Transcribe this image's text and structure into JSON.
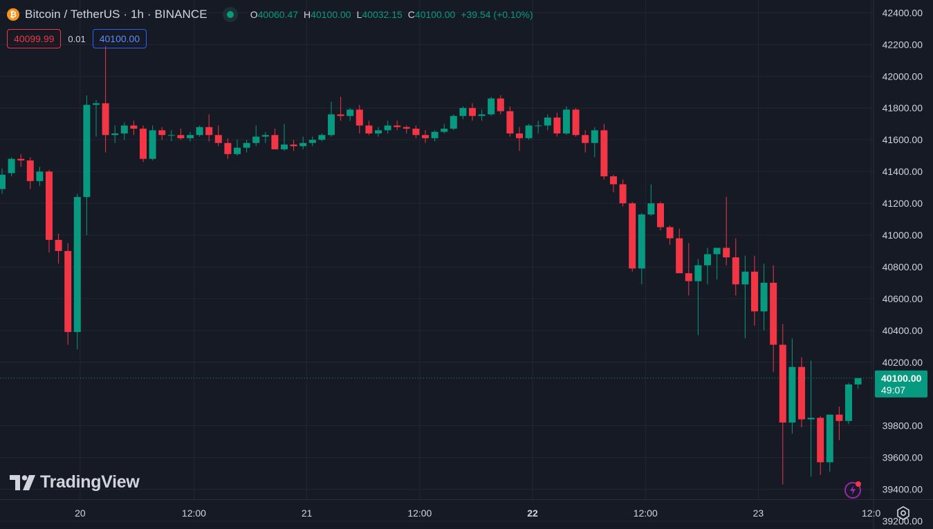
{
  "header": {
    "symbol_title": "Bitcoin / TetherUS · 1h · BINANCE",
    "ohlc": {
      "o_label": "O",
      "o": "40060.47",
      "h_label": "H",
      "h": "40100.00",
      "l_label": "L",
      "l": "40032.15",
      "c_label": "C",
      "c": "40100.00",
      "change": "+39.54 (+0.10%)"
    }
  },
  "trade": {
    "sell_price": "40099.99",
    "spread": "0.01",
    "buy_price": "40100.00"
  },
  "brand": {
    "logo_text": "TradingView"
  },
  "price_tag": {
    "price": "40100.00",
    "countdown": "49:07"
  },
  "colors": {
    "up": "#089981",
    "down": "#f23645",
    "background": "#161a25",
    "grid": "#232733"
  },
  "icons": [
    "bitcoin-icon",
    "status-dot-icon",
    "tradingview-logo-icon",
    "alert-icon",
    "settings-icon"
  ],
  "chart_data": {
    "type": "candlestick",
    "grid": true,
    "y_ticks": [
      "42400.00",
      "42200.00",
      "42000.00",
      "41800.00",
      "41600.00",
      "41400.00",
      "41200.00",
      "41000.00",
      "40800.00",
      "40600.00",
      "40400.00",
      "40200.00",
      "39800.00",
      "39600.00",
      "39400.00",
      "39200.00"
    ],
    "x_ticks": [
      {
        "label": "20",
        "bold": false
      },
      {
        "label": "12:00",
        "bold": false
      },
      {
        "label": "21",
        "bold": false
      },
      {
        "label": "12:00",
        "bold": false
      },
      {
        "label": "22",
        "bold": true
      },
      {
        "label": "12:00",
        "bold": false
      },
      {
        "label": "23",
        "bold": false
      },
      {
        "label": "12:0",
        "bold": false
      }
    ],
    "ylim": [
      39150,
      42480
    ],
    "current_price": 40100,
    "candles": [
      {
        "o": 41290,
        "h": 41420,
        "l": 41260,
        "c": 41380
      },
      {
        "o": 41390,
        "h": 41490,
        "l": 41370,
        "c": 41480
      },
      {
        "o": 41480,
        "h": 41510,
        "l": 41430,
        "c": 41470
      },
      {
        "o": 41470,
        "h": 41490,
        "l": 41290,
        "c": 41340
      },
      {
        "o": 41340,
        "h": 41430,
        "l": 41310,
        "c": 41400
      },
      {
        "o": 41400,
        "h": 41410,
        "l": 40890,
        "c": 40970
      },
      {
        "o": 40970,
        "h": 41010,
        "l": 40820,
        "c": 40900
      },
      {
        "o": 40900,
        "h": 40950,
        "l": 40310,
        "c": 40390
      },
      {
        "o": 40390,
        "h": 41260,
        "l": 40280,
        "c": 41240
      },
      {
        "o": 41240,
        "h": 41880,
        "l": 41000,
        "c": 41820
      },
      {
        "o": 41820,
        "h": 41850,
        "l": 41620,
        "c": 41830
      },
      {
        "o": 41830,
        "h": 42190,
        "l": 41520,
        "c": 41630
      },
      {
        "o": 41630,
        "h": 41690,
        "l": 41580,
        "c": 41640
      },
      {
        "o": 41640,
        "h": 41710,
        "l": 41600,
        "c": 41690
      },
      {
        "o": 41690,
        "h": 41720,
        "l": 41630,
        "c": 41670
      },
      {
        "o": 41670,
        "h": 41690,
        "l": 41460,
        "c": 41480
      },
      {
        "o": 41480,
        "h": 41690,
        "l": 41470,
        "c": 41660
      },
      {
        "o": 41660,
        "h": 41680,
        "l": 41600,
        "c": 41630
      },
      {
        "o": 41630,
        "h": 41660,
        "l": 41590,
        "c": 41630
      },
      {
        "o": 41630,
        "h": 41670,
        "l": 41600,
        "c": 41610
      },
      {
        "o": 41610,
        "h": 41650,
        "l": 41590,
        "c": 41630
      },
      {
        "o": 41630,
        "h": 41690,
        "l": 41620,
        "c": 41680
      },
      {
        "o": 41680,
        "h": 41760,
        "l": 41590,
        "c": 41630
      },
      {
        "o": 41630,
        "h": 41690,
        "l": 41560,
        "c": 41580
      },
      {
        "o": 41580,
        "h": 41610,
        "l": 41480,
        "c": 41510
      },
      {
        "o": 41510,
        "h": 41600,
        "l": 41500,
        "c": 41550
      },
      {
        "o": 41550,
        "h": 41600,
        "l": 41520,
        "c": 41580
      },
      {
        "o": 41580,
        "h": 41690,
        "l": 41560,
        "c": 41620
      },
      {
        "o": 41620,
        "h": 41650,
        "l": 41580,
        "c": 41630
      },
      {
        "o": 41630,
        "h": 41670,
        "l": 41540,
        "c": 41540
      },
      {
        "o": 41540,
        "h": 41700,
        "l": 41530,
        "c": 41570
      },
      {
        "o": 41570,
        "h": 41600,
        "l": 41530,
        "c": 41560
      },
      {
        "o": 41560,
        "h": 41620,
        "l": 41540,
        "c": 41580
      },
      {
        "o": 41580,
        "h": 41620,
        "l": 41560,
        "c": 41600
      },
      {
        "o": 41600,
        "h": 41640,
        "l": 41590,
        "c": 41630
      },
      {
        "o": 41630,
        "h": 41840,
        "l": 41620,
        "c": 41760
      },
      {
        "o": 41760,
        "h": 41870,
        "l": 41720,
        "c": 41750
      },
      {
        "o": 41750,
        "h": 41800,
        "l": 41720,
        "c": 41790
      },
      {
        "o": 41790,
        "h": 41820,
        "l": 41640,
        "c": 41690
      },
      {
        "o": 41690,
        "h": 41720,
        "l": 41630,
        "c": 41640
      },
      {
        "o": 41640,
        "h": 41680,
        "l": 41620,
        "c": 41660
      },
      {
        "o": 41660,
        "h": 41720,
        "l": 41640,
        "c": 41690
      },
      {
        "o": 41690,
        "h": 41720,
        "l": 41660,
        "c": 41680
      },
      {
        "o": 41680,
        "h": 41690,
        "l": 41640,
        "c": 41670
      },
      {
        "o": 41670,
        "h": 41690,
        "l": 41610,
        "c": 41630
      },
      {
        "o": 41630,
        "h": 41660,
        "l": 41580,
        "c": 41610
      },
      {
        "o": 41610,
        "h": 41660,
        "l": 41590,
        "c": 41650
      },
      {
        "o": 41650,
        "h": 41700,
        "l": 41640,
        "c": 41670
      },
      {
        "o": 41670,
        "h": 41760,
        "l": 41660,
        "c": 41750
      },
      {
        "o": 41750,
        "h": 41810,
        "l": 41730,
        "c": 41800
      },
      {
        "o": 41800,
        "h": 41830,
        "l": 41720,
        "c": 41750
      },
      {
        "o": 41750,
        "h": 41790,
        "l": 41720,
        "c": 41760
      },
      {
        "o": 41760,
        "h": 41870,
        "l": 41750,
        "c": 41860
      },
      {
        "o": 41860,
        "h": 41880,
        "l": 41760,
        "c": 41780
      },
      {
        "o": 41780,
        "h": 41810,
        "l": 41620,
        "c": 41640
      },
      {
        "o": 41640,
        "h": 41680,
        "l": 41530,
        "c": 41610
      },
      {
        "o": 41610,
        "h": 41700,
        "l": 41600,
        "c": 41690
      },
      {
        "o": 41690,
        "h": 41720,
        "l": 41640,
        "c": 41690
      },
      {
        "o": 41690,
        "h": 41760,
        "l": 41660,
        "c": 41740
      },
      {
        "o": 41740,
        "h": 41770,
        "l": 41620,
        "c": 41640
      },
      {
        "o": 41640,
        "h": 41810,
        "l": 41630,
        "c": 41790
      },
      {
        "o": 41790,
        "h": 41800,
        "l": 41620,
        "c": 41630
      },
      {
        "o": 41630,
        "h": 41660,
        "l": 41520,
        "c": 41580
      },
      {
        "o": 41580,
        "h": 41680,
        "l": 41490,
        "c": 41660
      },
      {
        "o": 41660,
        "h": 41700,
        "l": 41350,
        "c": 41370
      },
      {
        "o": 41370,
        "h": 41380,
        "l": 41270,
        "c": 41320
      },
      {
        "o": 41320,
        "h": 41350,
        "l": 41180,
        "c": 41200
      },
      {
        "o": 41200,
        "h": 41210,
        "l": 40770,
        "c": 40790
      },
      {
        "o": 40790,
        "h": 41140,
        "l": 40690,
        "c": 41130
      },
      {
        "o": 41130,
        "h": 41320,
        "l": 41120,
        "c": 41200
      },
      {
        "o": 41200,
        "h": 41210,
        "l": 41030,
        "c": 41050
      },
      {
        "o": 41050,
        "h": 41060,
        "l": 40940,
        "c": 40980
      },
      {
        "o": 40980,
        "h": 41040,
        "l": 40780,
        "c": 40760
      },
      {
        "o": 40760,
        "h": 40950,
        "l": 40620,
        "c": 40710
      },
      {
        "o": 40710,
        "h": 40850,
        "l": 40370,
        "c": 40810
      },
      {
        "o": 40810,
        "h": 40920,
        "l": 40690,
        "c": 40880
      },
      {
        "o": 40880,
        "h": 40920,
        "l": 40720,
        "c": 40920
      },
      {
        "o": 40920,
        "h": 41240,
        "l": 40810,
        "c": 40860
      },
      {
        "o": 40860,
        "h": 40980,
        "l": 40620,
        "c": 40690
      },
      {
        "o": 40690,
        "h": 40870,
        "l": 40350,
        "c": 40770
      },
      {
        "o": 40770,
        "h": 40870,
        "l": 40430,
        "c": 40520
      },
      {
        "o": 40520,
        "h": 40820,
        "l": 40400,
        "c": 40700
      },
      {
        "o": 40700,
        "h": 40810,
        "l": 40140,
        "c": 40310
      },
      {
        "o": 40310,
        "h": 40440,
        "l": 39430,
        "c": 39820
      },
      {
        "o": 39820,
        "h": 40350,
        "l": 39750,
        "c": 40170
      },
      {
        "o": 40170,
        "h": 40230,
        "l": 39790,
        "c": 39840
      },
      {
        "o": 39840,
        "h": 40210,
        "l": 39480,
        "c": 39850
      },
      {
        "o": 39850,
        "h": 39860,
        "l": 39490,
        "c": 39570
      },
      {
        "o": 39570,
        "h": 39870,
        "l": 39510,
        "c": 39870
      },
      {
        "o": 39870,
        "h": 39920,
        "l": 39710,
        "c": 39830
      },
      {
        "o": 39830,
        "h": 40070,
        "l": 39810,
        "c": 40060
      },
      {
        "o": 40060,
        "h": 40100,
        "l": 40032,
        "c": 40100
      }
    ]
  }
}
